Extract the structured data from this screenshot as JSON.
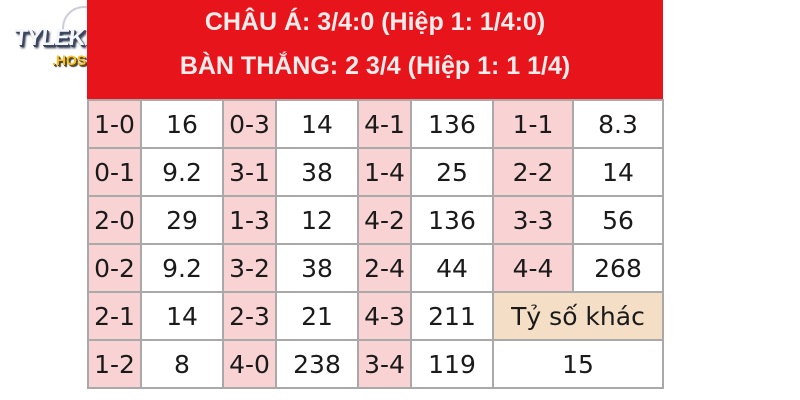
{
  "logo": {
    "text": "TYLEKEO",
    "suffix": ".HOST"
  },
  "header": {
    "line1": "CHÂU Á: 3/4:0 (Hiệp 1: 1/4:0)",
    "line2": "BÀN THẮNG: 2 3/4 (Hiệp 1: 1 1/4)"
  },
  "colors": {
    "header_bg": "#e8141c",
    "score_cell_bg": "#f9d3d4",
    "other_cell_bg": "#f4dec6"
  },
  "rows": [
    [
      {
        "score": "1-0",
        "odds": "16"
      },
      {
        "score": "0-3",
        "odds": "14"
      },
      {
        "score": "4-1",
        "odds": "136"
      },
      {
        "score": "1-1",
        "odds": "8.3"
      }
    ],
    [
      {
        "score": "0-1",
        "odds": "9.2"
      },
      {
        "score": "3-1",
        "odds": "38"
      },
      {
        "score": "1-4",
        "odds": "25"
      },
      {
        "score": "2-2",
        "odds": "14"
      }
    ],
    [
      {
        "score": "2-0",
        "odds": "29"
      },
      {
        "score": "1-3",
        "odds": "12"
      },
      {
        "score": "4-2",
        "odds": "136"
      },
      {
        "score": "3-3",
        "odds": "56"
      }
    ],
    [
      {
        "score": "0-2",
        "odds": "9.2"
      },
      {
        "score": "3-2",
        "odds": "38"
      },
      {
        "score": "2-4",
        "odds": "44"
      },
      {
        "score": "4-4",
        "odds": "268"
      }
    ],
    [
      {
        "score": "2-1",
        "odds": "14"
      },
      {
        "score": "2-3",
        "odds": "21"
      },
      {
        "score": "4-3",
        "odds": "211"
      }
    ],
    [
      {
        "score": "1-2",
        "odds": "8"
      },
      {
        "score": "4-0",
        "odds": "238"
      },
      {
        "score": "3-4",
        "odds": "119"
      }
    ]
  ],
  "other": {
    "label": "Tỷ số khác",
    "odds": "15"
  }
}
